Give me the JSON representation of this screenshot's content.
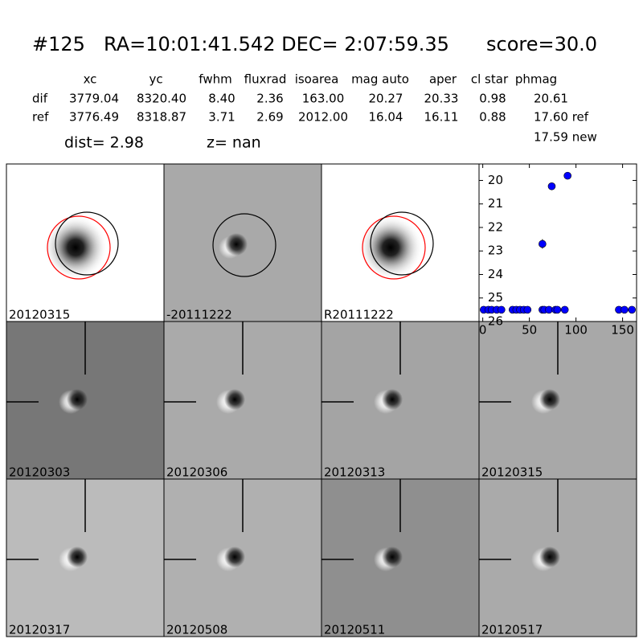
{
  "header": {
    "id": "#125",
    "coords": "RA=10:01:41.542 DEC= 2:07:59.35",
    "score": "score=30.0"
  },
  "table": {
    "columns": [
      "xc",
      "yc",
      "fwhm",
      "fluxrad",
      "isoarea",
      "mag auto",
      "aper",
      "cl star",
      "phmag"
    ],
    "rows": [
      [
        "dif",
        "3779.04",
        "8320.40",
        "8.40",
        "2.36",
        "163.00",
        "20.27",
        "20.33",
        "0.98",
        "20.61"
      ],
      [
        "ref",
        "3776.49",
        "8318.87",
        "3.71",
        "2.69",
        "2012.00",
        "16.04",
        "16.11",
        "0.88",
        "17.60 ref"
      ]
    ],
    "extra": "17.59 new"
  },
  "dist": "dist=  2.98",
  "z": "z=   nan",
  "panels": [
    "20120315",
    "-20111222",
    "R20111222",
    "20120303",
    "20120306",
    "20120313",
    "20120315",
    "20120317",
    "20120508",
    "20120511",
    "20120517"
  ],
  "highlight_panel": 6,
  "highlight_color": "#ff0000",
  "chart_data": {
    "type": "scatter",
    "x": [
      1,
      6,
      9.5,
      15,
      20,
      32,
      36,
      40,
      44,
      48,
      64,
      64,
      66,
      71,
      74,
      78,
      80,
      88,
      91,
      146,
      152,
      160
    ],
    "series": [
      {
        "color": "#0000ff",
        "values": [
          25.5,
          25.5,
          25.5,
          25.5,
          25.5,
          25.5,
          25.5,
          25.5,
          25.5,
          25.5,
          22.7,
          25.5,
          25.5,
          25.5,
          20.25,
          25.5,
          25.5,
          25.5,
          19.8,
          25.5,
          25.5,
          25.5
        ],
        "errors": [
          null,
          null,
          null,
          null,
          null,
          null,
          null,
          null,
          null,
          null,
          0.2,
          null,
          null,
          null,
          null,
          null,
          null,
          null,
          null,
          null,
          null,
          null
        ]
      }
    ],
    "xlim": [
      -4,
      165
    ],
    "ylim": [
      26,
      19.3
    ],
    "xticks": [
      0,
      50,
      100,
      150
    ],
    "yticks": [
      20,
      21,
      22,
      23,
      24,
      25,
      26
    ]
  }
}
